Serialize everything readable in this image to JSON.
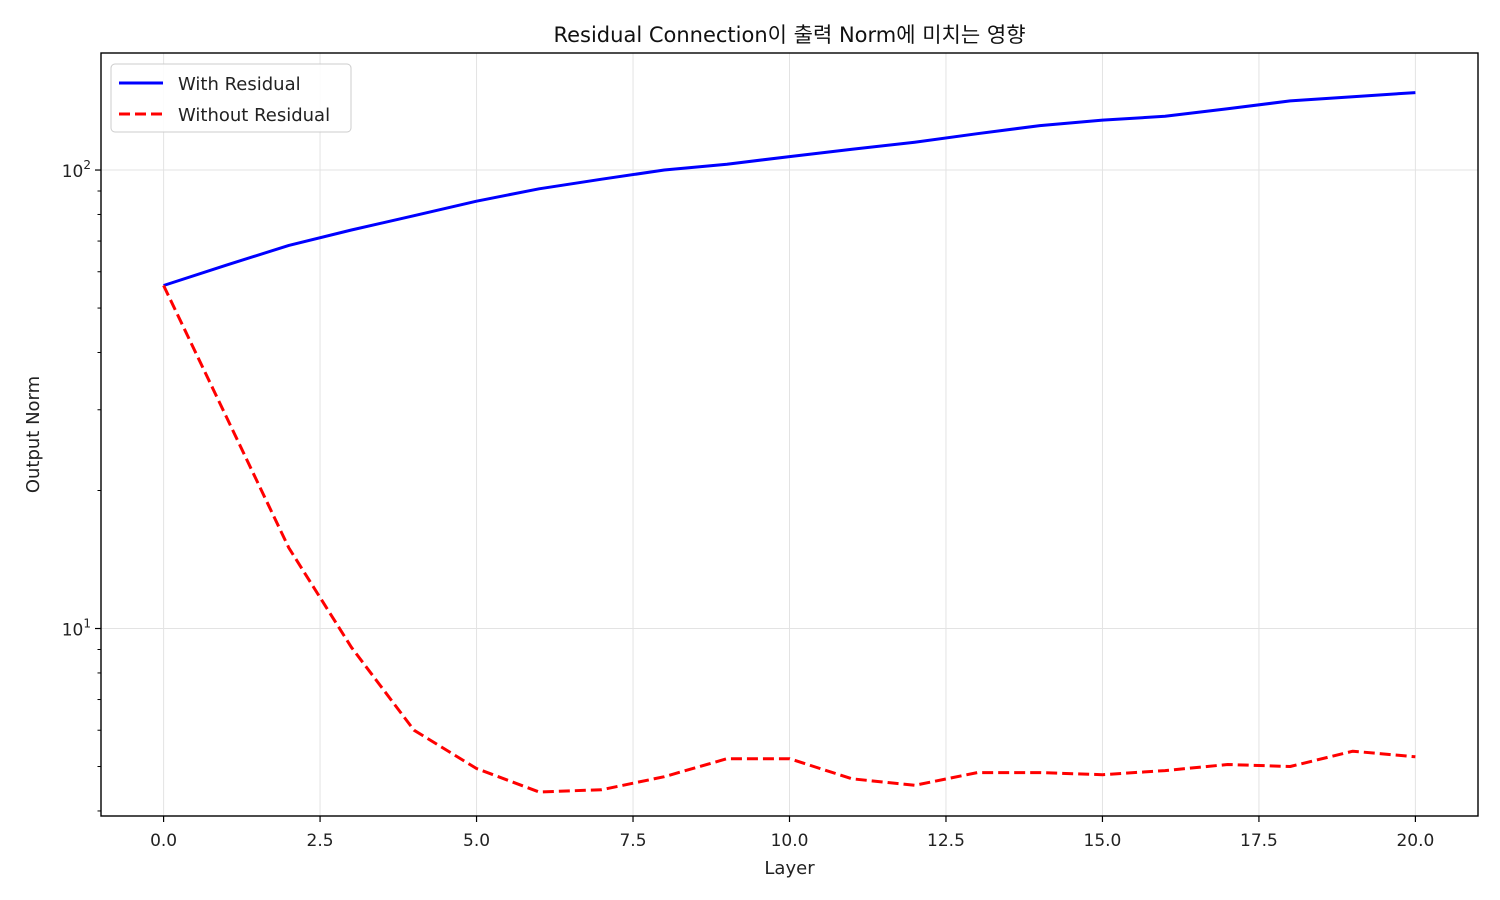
{
  "chart_data": {
    "type": "line",
    "title": "Residual Connection이 출력 Norm에 미치는 영향",
    "xlabel": "Layer",
    "ylabel": "Output Norm",
    "xlim": [
      -1,
      21
    ],
    "ylim": [
      3.9,
      180
    ],
    "yscale": "log",
    "grid": true,
    "legend_position": "top-left",
    "x_ticks": [
      0.0,
      2.5,
      5.0,
      7.5,
      10.0,
      12.5,
      15.0,
      17.5,
      20.0
    ],
    "x_tick_labels": [
      "0.0",
      "2.5",
      "5.0",
      "7.5",
      "10.0",
      "12.5",
      "15.0",
      "17.5",
      "20.0"
    ],
    "y_ticks": [
      10,
      100
    ],
    "y_tick_labels": [
      {
        "base": "10",
        "exp": "1"
      },
      {
        "base": "10",
        "exp": "2"
      }
    ],
    "x": [
      0,
      1,
      2,
      3,
      4,
      5,
      6,
      7,
      8,
      9,
      10,
      11,
      12,
      13,
      14,
      15,
      16,
      17,
      18,
      19,
      20
    ],
    "series": [
      {
        "name": "With Residual",
        "color": "#0000ff",
        "style": "solid",
        "values": [
          56,
          62,
          68.5,
          74,
          79.5,
          85.5,
          91,
          95.5,
          100,
          103,
          107,
          111,
          115,
          120,
          125,
          128.5,
          131,
          136,
          141.5,
          144.5,
          147.5
        ]
      },
      {
        "name": "Without Residual",
        "color": "#ff0000",
        "style": "dashed",
        "values": [
          56,
          29,
          15,
          9.1,
          6.0,
          4.95,
          4.4,
          4.45,
          4.75,
          5.2,
          5.2,
          4.7,
          4.55,
          4.85,
          4.85,
          4.8,
          4.9,
          5.05,
          5.0,
          5.4,
          5.25
        ]
      }
    ]
  }
}
